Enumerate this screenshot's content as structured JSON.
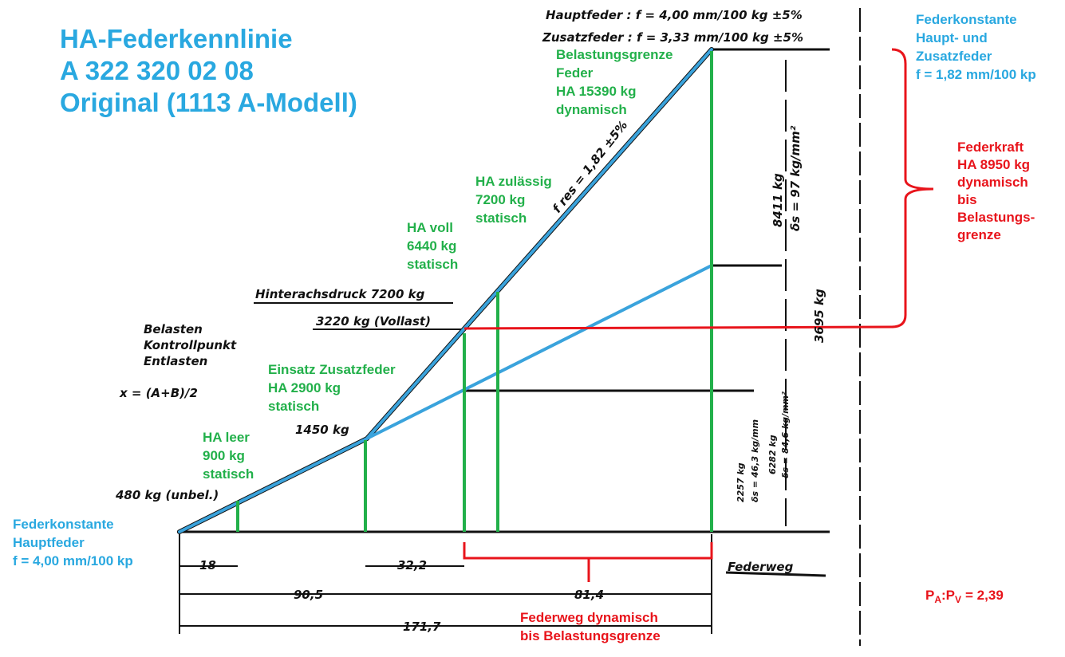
{
  "title": [
    "HA-Federkennlinie",
    "A 322 320 02 08",
    "Original (1113 A-Modell)"
  ],
  "rate_combined": [
    "Federkonstante",
    "Haupt- und",
    "Zusatzfeder",
    "f = 1,82 mm/100 kp"
  ],
  "rate_main": [
    "Federkonstante",
    "Hauptfeder",
    "f = 4,00 mm/100 kp"
  ],
  "force_range": [
    "Federkraft",
    "HA 8950 kg",
    "dynamisch",
    "bis",
    "Belastungs-",
    "grenze"
  ],
  "travel_range": [
    "Federweg dynamisch",
    "bis Belastungsgrenze"
  ],
  "load_limit": [
    "Belastungsgrenze",
    "Feder",
    "HA 15390 kg",
    "dynamisch"
  ],
  "permitted": [
    "HA zulässig",
    "7200 kg",
    "statisch"
  ],
  "full": [
    "HA voll",
    "6440 kg",
    "statisch"
  ],
  "aux_spring": [
    "Einsatz Zusatzfeder",
    "HA 2900 kg",
    "statisch"
  ],
  "empty": [
    "HA leer",
    "900 kg",
    "statisch"
  ],
  "ratio": {
    "p1": "P",
    "sub1": "A",
    "p2": ":P",
    "sub2": "V",
    "value": "= 2,39"
  },
  "sketch": {
    "main_spring": "Hauptfeder : f = 4,00 mm/100 kg ±5%",
    "aux_spring": "Zusatzfeder : f = 3,33 mm/100 kg ±5%",
    "f_res": "f res = 1,82 ±5%",
    "axle_load": "Hinterachsdruck 7200 kg",
    "full_load": "3220 kg (Vollast)",
    "control": [
      "Belasten",
      "Kontrollpunkt",
      "Entlasten"
    ],
    "formula": "x = (A+B)/2",
    "kg1450": "1450 kg",
    "unloaded": "480 kg (unbel.)",
    "kg8411": "8411 kg",
    "ds97": "δs = 97 kg/mm²",
    "kg3695": "3695 kg",
    "kg2257": "2257 kg",
    "ds46": "δs = 46,3 kg/mm",
    "kg6282": "6282 kg",
    "ds84": "δs = 84,6 kg/mm²",
    "dims": [
      "18",
      "32,2",
      "90,5",
      "81,4",
      "171,7"
    ],
    "travel": "Federweg"
  }
}
